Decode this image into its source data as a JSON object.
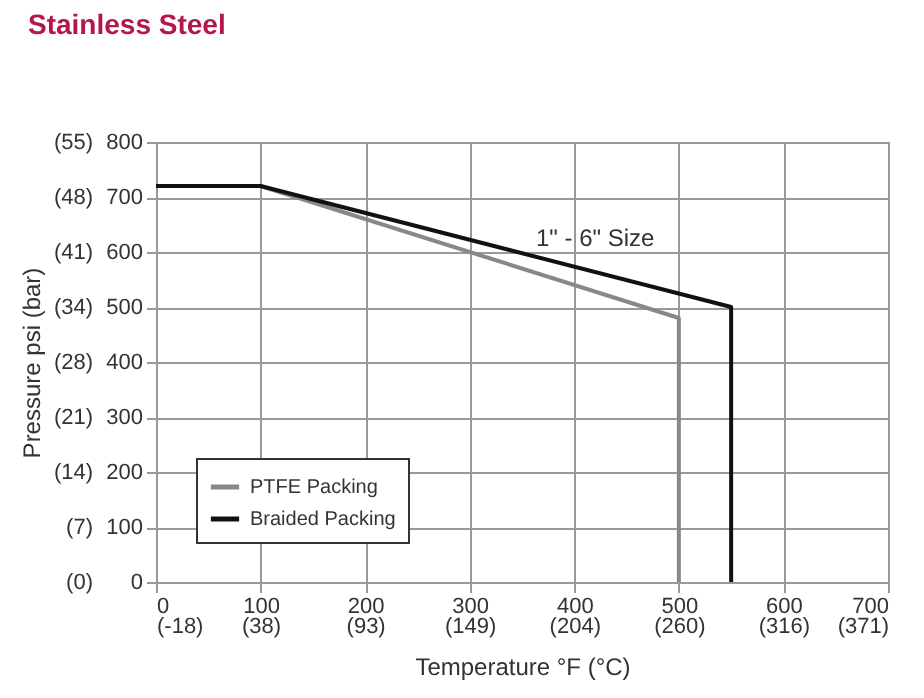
{
  "chart_data": {
    "type": "line",
    "title": "Stainless Steel",
    "xlabel": "Temperature °F (°C)",
    "y2label": "Pressure psi (bar)",
    "series": [
      {
        "name": "PTFE Packing",
        "color": "#888888",
        "x": [
          0,
          100,
          500,
          500
        ],
        "values": [
          720,
          720,
          480,
          0
        ]
      },
      {
        "name": "Braided Packing",
        "color": "#111111",
        "x": [
          0,
          100,
          550,
          550
        ],
        "values": [
          720,
          720,
          500,
          0
        ]
      }
    ],
    "xlim": [
      0,
      700
    ],
    "ylim": [
      0,
      800
    ],
    "xticks": [
      0,
      100,
      200,
      300,
      400,
      500,
      600,
      700
    ],
    "yticks": [
      0,
      100,
      200,
      300,
      400,
      500,
      600,
      700,
      800
    ],
    "x2lim": [
      -17.78,
      371.11
    ],
    "x2ticks": [
      {
        "value": -17.78,
        "label": "(-18)"
      },
      {
        "value": 37.78,
        "label": "(38)"
      },
      {
        "value": 93.33,
        "label": "(93)"
      },
      {
        "value": 148.89,
        "label": "(149)"
      },
      {
        "value": 204.44,
        "label": "(204)"
      },
      {
        "value": 260,
        "label": "(260)"
      },
      {
        "value": 315.56,
        "label": "(316)"
      },
      {
        "value": 371.11,
        "label": "(371)"
      }
    ],
    "y2lim": [
      0,
      55.16
    ],
    "y2ticks": [
      {
        "value": 0,
        "label": "(0)"
      },
      {
        "value": 6.89,
        "label": "(7)"
      },
      {
        "value": 13.79,
        "label": "(14)"
      },
      {
        "value": 20.68,
        "label": "(21)"
      },
      {
        "value": 27.58,
        "label": "(28)"
      },
      {
        "value": 34.47,
        "label": "(34)"
      },
      {
        "value": 41.37,
        "label": "(41)"
      },
      {
        "value": 48.26,
        "label": "(48)"
      },
      {
        "value": 55.16,
        "label": "(55)"
      }
    ],
    "annotations": [
      "1\" - 6\" Size"
    ],
    "grid": true,
    "legend": "bottom left",
    "marker": "none",
    "line_style": "solid"
  }
}
